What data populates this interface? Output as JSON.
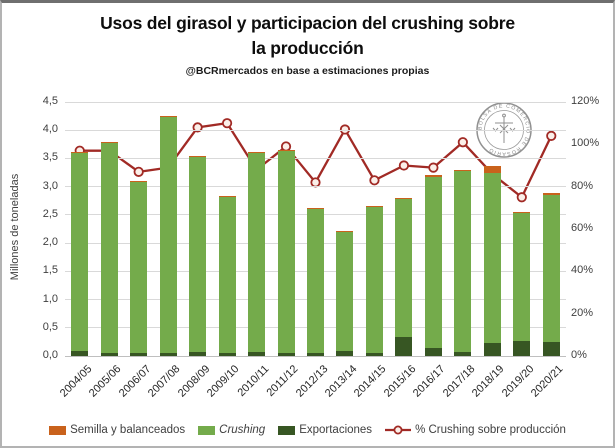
{
  "header": {
    "title_line1": "Usos del girasol y participacion del crushing sobre",
    "title_line2": "la producción",
    "subtitle": "@BCRmercados en base a estimaciones propias"
  },
  "y_axis": {
    "title": "Millones de toneladas",
    "ticks": [
      "0,0",
      "0,5",
      "1,0",
      "1,5",
      "2,0",
      "2,5",
      "3,0",
      "3,5",
      "4,0",
      "4,5"
    ]
  },
  "y2_axis": {
    "ticks": [
      "0%",
      "20%",
      "40%",
      "60%",
      "80%",
      "100%",
      "120%"
    ]
  },
  "logo": {
    "text": "BOLSA DE COMERCIO DE ROSARIO"
  },
  "colors": {
    "semilla": "#C9621C",
    "crushing": "#74AB4B",
    "exportaciones": "#375623",
    "line": "#A12A25",
    "marker_fill": "#FBEFE9",
    "grid": "#d9d9d9"
  },
  "legend": [
    {
      "label": "Semilla y balanceados",
      "type": "swatch",
      "color": "#C9621C",
      "italic": false
    },
    {
      "label": "Crushing",
      "type": "swatch",
      "color": "#74AB4B",
      "italic": true
    },
    {
      "label": "Exportaciones",
      "type": "swatch",
      "color": "#375623",
      "italic": false
    },
    {
      "label": "% Crushing sobre producción",
      "type": "line",
      "color": "#A12A25",
      "italic": false
    }
  ],
  "chart_data": {
    "type": "combo: stacked bar + line",
    "title": "Usos del girasol y participacion del crushing sobre la producción",
    "subtitle": "@BCRmercados en base a estimaciones propias",
    "ylabel": "Millones de toneladas",
    "ylim_left": [
      0,
      4.5
    ],
    "left_tick_step": 0.5,
    "ylim_right_pct": [
      0,
      120
    ],
    "right_tick_step_pct": 20,
    "grid": "horizontal only",
    "legend_position": "bottom",
    "categories": [
      "2004/05",
      "2005/06",
      "2006/07",
      "2007/08",
      "2008/09",
      "2009/10",
      "2010/11",
      "2011/12",
      "2012/13",
      "2013/14",
      "2014/15",
      "2015/16",
      "2016/17",
      "2017/18",
      "2018/19",
      "2019/20",
      "2020/21"
    ],
    "stack_order_bottom_to_top": [
      "Exportaciones",
      "Crushing",
      "Semilla y balanceados"
    ],
    "series": [
      {
        "name": "Semilla y balanceados",
        "axis": "left",
        "kind": "bar",
        "values": [
          0.02,
          0.02,
          0.02,
          0.02,
          0.02,
          0.02,
          0.02,
          0.02,
          0.02,
          0.02,
          0.02,
          0.02,
          0.02,
          0.02,
          0.12,
          0.02,
          0.02
        ]
      },
      {
        "name": "Crushing",
        "axis": "left",
        "kind": "bar",
        "values": [
          3.52,
          3.72,
          3.02,
          4.18,
          3.45,
          2.75,
          3.52,
          3.57,
          2.56,
          2.12,
          2.58,
          2.45,
          3.04,
          3.21,
          3.02,
          2.28,
          2.61
        ]
      },
      {
        "name": "Exportaciones",
        "axis": "left",
        "kind": "bar",
        "values": [
          0.08,
          0.06,
          0.06,
          0.05,
          0.07,
          0.06,
          0.07,
          0.06,
          0.05,
          0.08,
          0.06,
          0.33,
          0.14,
          0.07,
          0.23,
          0.26,
          0.25
        ]
      },
      {
        "name": "% Crushing sobre producción",
        "axis": "right",
        "kind": "line",
        "values": [
          97,
          97,
          87,
          89,
          108,
          110,
          88,
          99,
          82,
          107,
          83,
          90,
          89,
          101,
          86,
          75,
          104
        ]
      }
    ],
    "bar_totals_mt": [
      3.62,
      3.8,
      3.1,
      4.25,
      3.54,
      2.83,
      3.61,
      3.65,
      2.63,
      2.22,
      2.66,
      2.8,
      3.2,
      3.3,
      3.37,
      2.56,
      2.88
    ]
  }
}
